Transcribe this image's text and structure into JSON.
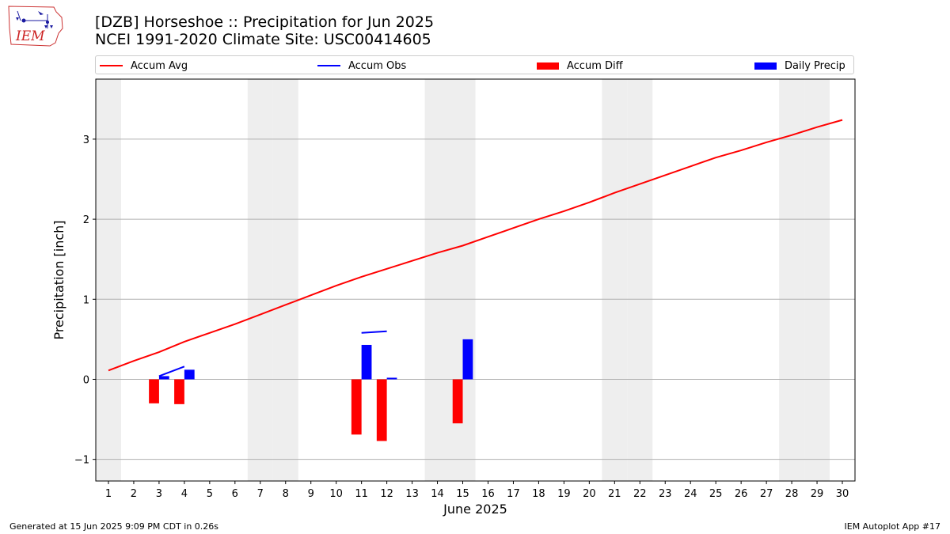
{
  "header": {
    "title_line1": "[DZB] Horseshoe :: Precipitation for Jun 2025",
    "title_line2": "NCEI 1991-2020 Climate Site: USC00414605"
  },
  "logo": {
    "text": "IEM"
  },
  "legend": {
    "items": [
      {
        "label": "Accum Avg",
        "kind": "line",
        "color": "#ff0000"
      },
      {
        "label": "Accum Obs",
        "kind": "line",
        "color": "#0000ff"
      },
      {
        "label": "Accum Diff",
        "kind": "patch",
        "color": "#ff0000"
      },
      {
        "label": "Daily Precip",
        "kind": "patch",
        "color": "#0000ff"
      }
    ]
  },
  "footer": {
    "left": "Generated at 15 Jun 2025 9:09 PM CDT in 0.26s",
    "right": "IEM Autoplot App #17"
  },
  "chart_data": {
    "type": "bar",
    "xlabel": "June 2025",
    "ylabel": "Precipitation [inch]",
    "x": [
      1,
      2,
      3,
      4,
      5,
      6,
      7,
      8,
      9,
      10,
      11,
      12,
      13,
      14,
      15,
      16,
      17,
      18,
      19,
      20,
      21,
      22,
      23,
      24,
      25,
      26,
      27,
      28,
      29,
      30
    ],
    "xlim": [
      0.5,
      30.5
    ],
    "ylim": [
      -1.27,
      3.75
    ],
    "yticks": [
      -1,
      0,
      1,
      2,
      3
    ],
    "ytick_labels": [
      "−1",
      "0",
      "1",
      "2",
      "3"
    ],
    "grid": "horizontal",
    "legend_position": "top",
    "weekend_days": [
      1,
      7,
      8,
      14,
      15,
      21,
      22,
      28,
      29
    ],
    "weekend_color": "#eeeeee",
    "accum_avg": {
      "name": "Accum Avg",
      "color": "#ff0000",
      "x": [
        1,
        2,
        3,
        4,
        5,
        6,
        7,
        8,
        9,
        10,
        11,
        12,
        13,
        14,
        15,
        16,
        17,
        18,
        19,
        20,
        21,
        22,
        23,
        24,
        25,
        26,
        27,
        28,
        29,
        30
      ],
      "values": [
        0.11,
        0.23,
        0.34,
        0.47,
        0.58,
        0.69,
        0.81,
        0.93,
        1.05,
        1.17,
        1.28,
        1.38,
        1.48,
        1.58,
        1.67,
        1.78,
        1.89,
        2.0,
        2.1,
        2.21,
        2.33,
        2.44,
        2.55,
        2.66,
        2.77,
        2.86,
        2.96,
        3.05,
        3.15,
        3.24
      ]
    },
    "accum_obs": {
      "name": "Accum Obs",
      "color": "#0000ff",
      "segments": [
        {
          "x": [
            3,
            4
          ],
          "values": [
            0.04,
            0.16
          ]
        },
        {
          "x": [
            11,
            12
          ],
          "values": [
            0.58,
            0.6
          ]
        }
      ]
    },
    "accum_diff": {
      "name": "Accum Diff",
      "color": "#ff0000",
      "x": [
        3,
        4,
        11,
        12,
        15
      ],
      "values": [
        -0.3,
        -0.31,
        -0.69,
        -0.77,
        -0.55
      ]
    },
    "daily_precip": {
      "name": "Daily Precip",
      "color": "#0000ff",
      "x": [
        3,
        4,
        11,
        12,
        15
      ],
      "values": [
        0.04,
        0.12,
        0.43,
        0.02,
        0.5
      ]
    }
  }
}
